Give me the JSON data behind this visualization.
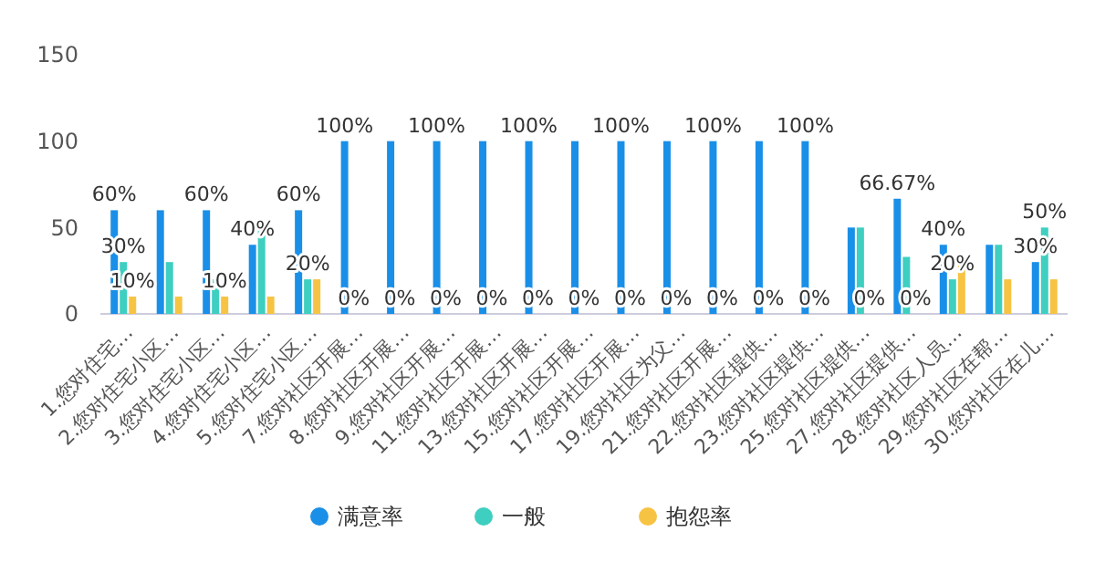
{
  "chart_data": {
    "type": "bar",
    "categories": [
      "1.您对住宅…",
      "2.您对住宅小区…",
      "3.您对住宅小区…",
      "4.您对住宅小区…",
      "5.您对住宅小区…",
      "7.您对社区开展…",
      "8.您对社区开展…",
      "9.您对社区开展…",
      "11.您对社区开展…",
      "13.您对社区开展…",
      "15.您对社区开展…",
      "17.您对社区开展…",
      "19.您对社区为父…",
      "21.您对社区开展…",
      "22.您对社区提供…",
      "23.您对社区提供…",
      "25.您对社区提供…",
      "27.您对社区提供…",
      "28.您对社区人员…",
      "29.您对社区在帮…",
      "30.您对社区在儿…"
    ],
    "series": [
      {
        "name": "满意率",
        "color": "#1a8fe8",
        "values": [
          60,
          60,
          60,
          40,
          60,
          100,
          100,
          100,
          100,
          100,
          100,
          100,
          100,
          100,
          100,
          100,
          50,
          66.67,
          40,
          40,
          30
        ],
        "value_labels": [
          "60%",
          null,
          "60%",
          "40%",
          "60%",
          "100%",
          null,
          "100%",
          null,
          "100%",
          null,
          "100%",
          null,
          "100%",
          null,
          "100%",
          null,
          "66.67%",
          "40%",
          null,
          "30%"
        ]
      },
      {
        "name": "一般",
        "color": "#3ecfc0",
        "values": [
          30,
          30,
          20,
          50,
          20,
          0,
          0,
          0,
          0,
          0,
          0,
          0,
          0,
          0,
          0,
          0,
          50,
          33,
          20,
          40,
          50
        ],
        "value_labels": [
          "30%",
          null,
          null,
          null,
          "20%",
          "0%",
          "0%",
          "0%",
          "0%",
          "0%",
          "0%",
          "0%",
          "0%",
          "0%",
          "0%",
          "0%",
          null,
          null,
          "20%",
          null,
          "50%"
        ]
      },
      {
        "name": "抱怨率",
        "color": "#f7c343",
        "values": [
          10,
          10,
          10,
          10,
          20,
          0,
          0,
          0,
          0,
          0,
          0,
          0,
          0,
          0,
          0,
          0,
          0,
          0,
          30,
          20,
          20
        ],
        "value_labels": [
          "10%",
          null,
          "10%",
          null,
          null,
          null,
          null,
          null,
          null,
          null,
          null,
          null,
          null,
          null,
          null,
          null,
          "0%",
          "0%",
          null,
          null,
          null
        ]
      }
    ],
    "ylim": [
      0,
      150
    ],
    "yticks": [
      0,
      50,
      100,
      150
    ],
    "grid": false,
    "legend": "bottom"
  }
}
